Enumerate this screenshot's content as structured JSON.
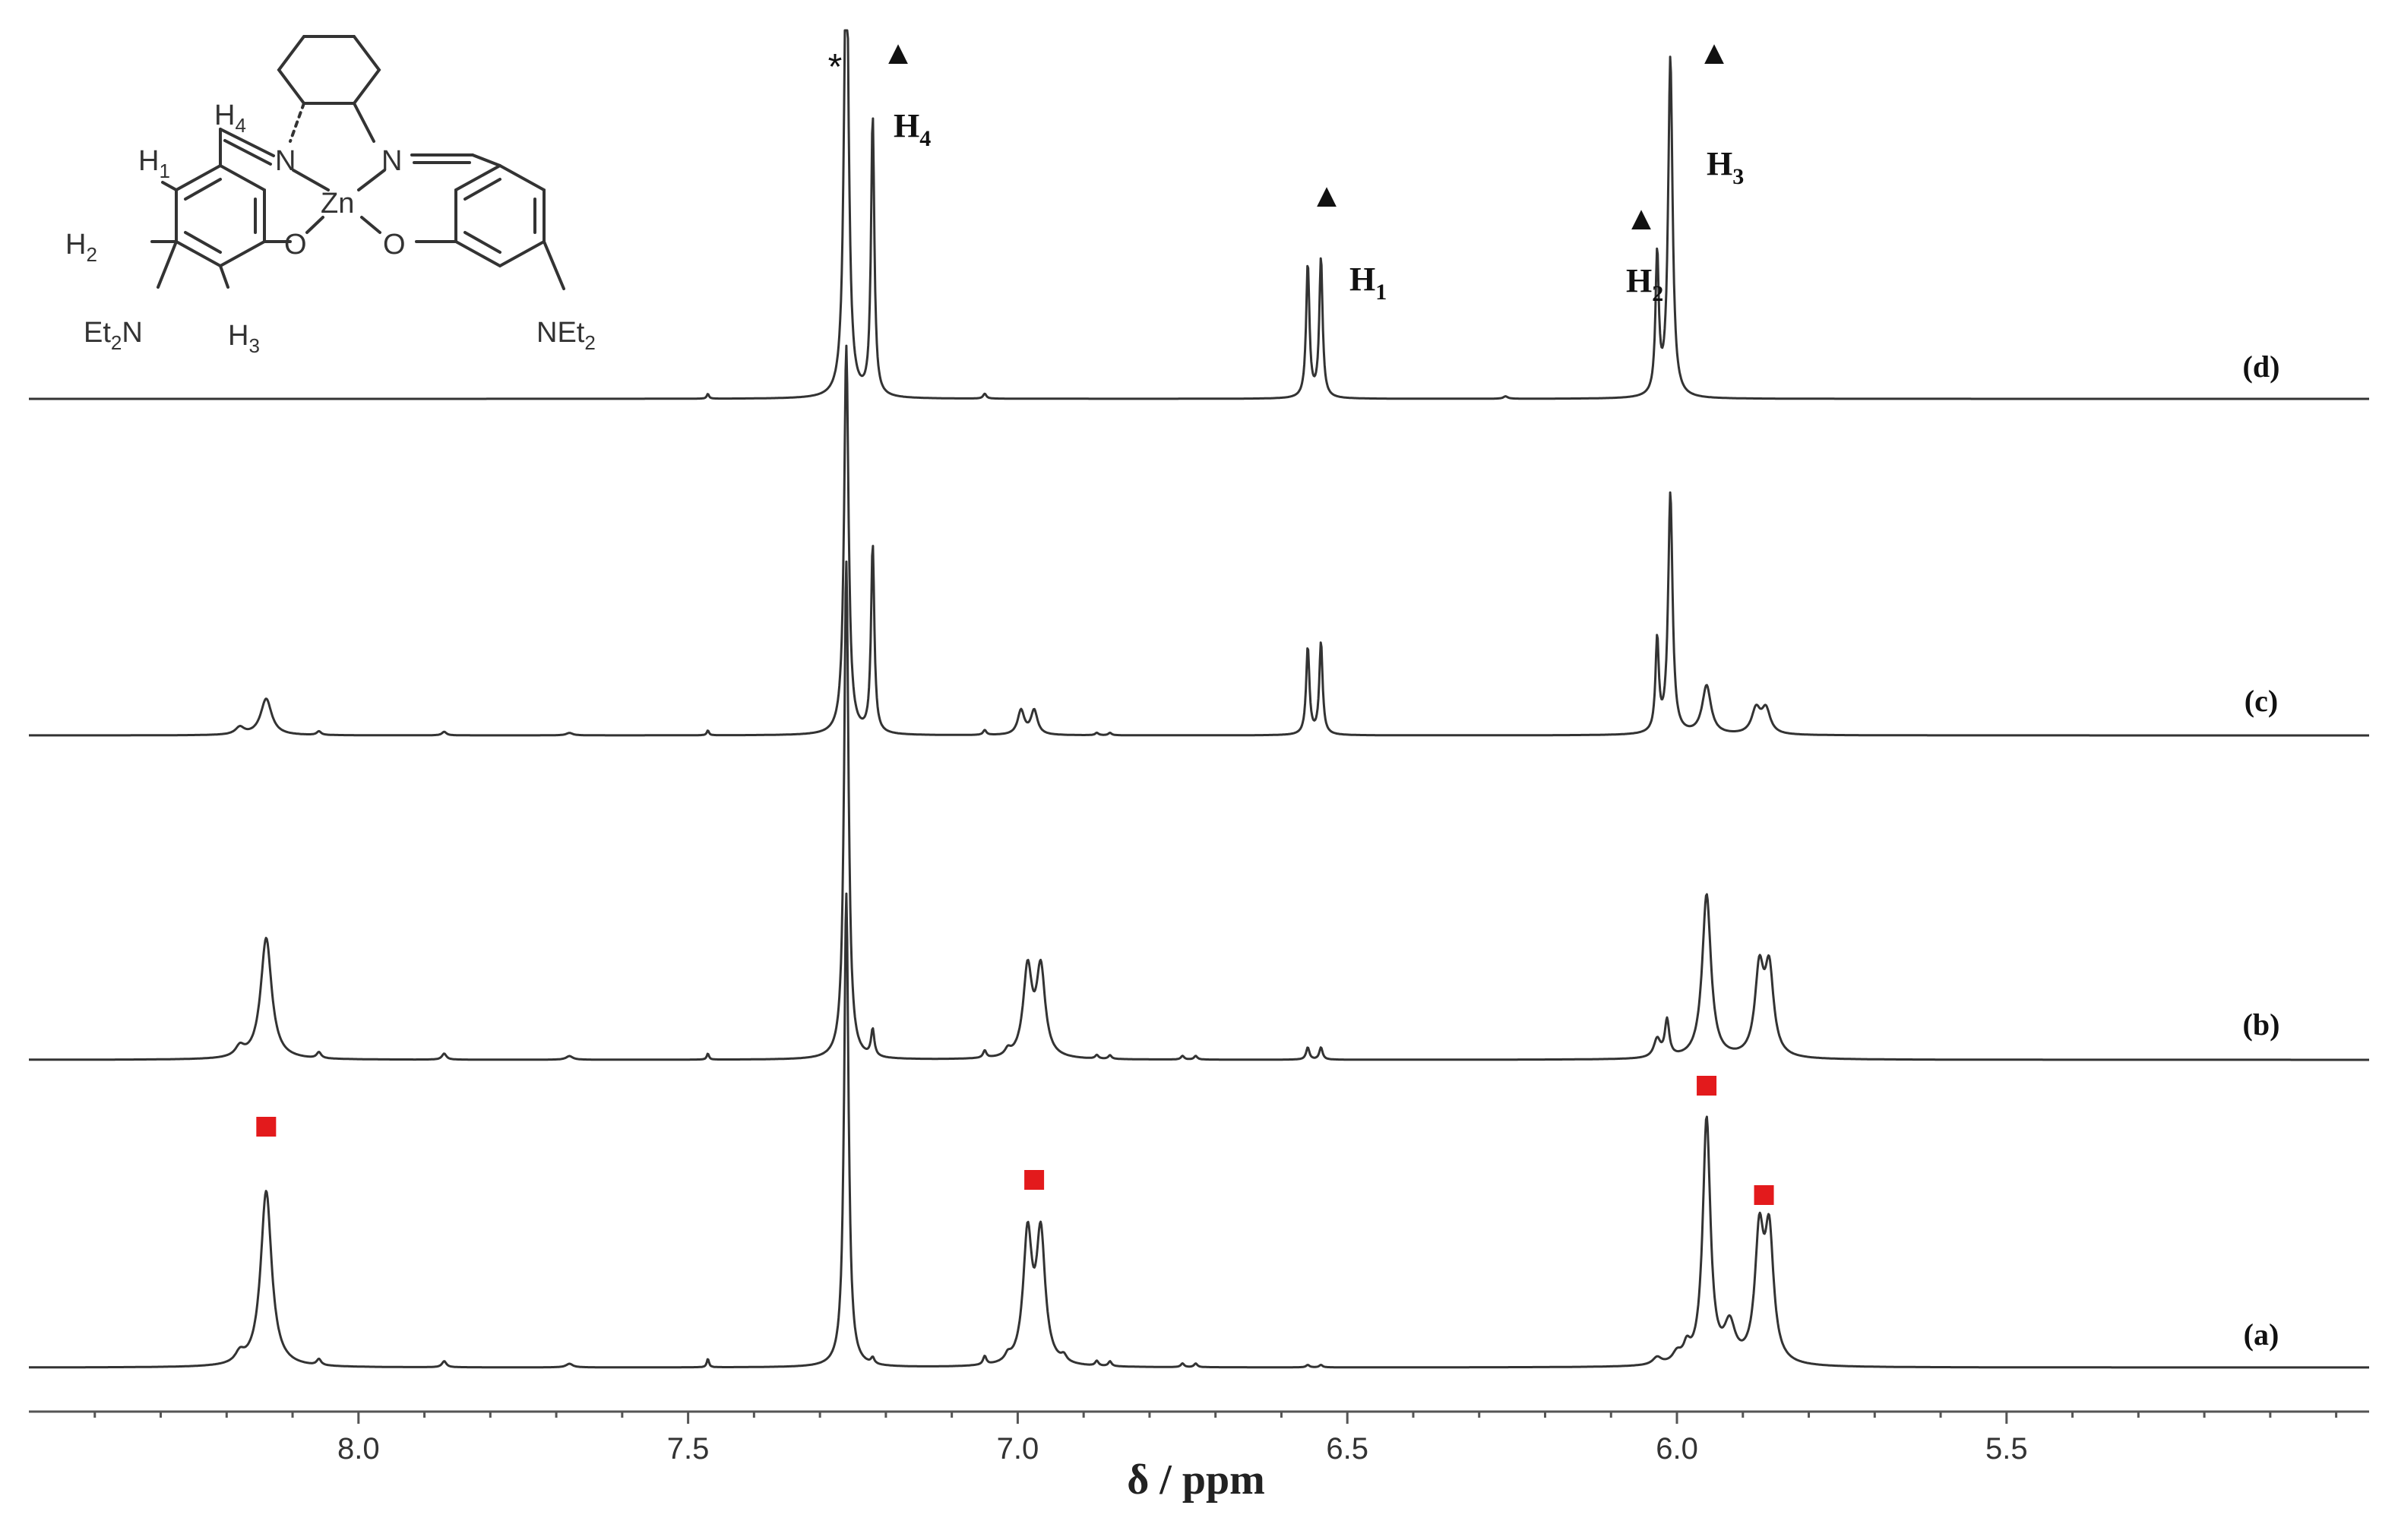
{
  "chart_data": {
    "type": "line",
    "title": "",
    "xlabel": "δ / ppm",
    "ylabel": "",
    "xlim": [
      8.5,
      4.95
    ],
    "x_reversed": true,
    "ticks": [
      8.0,
      7.5,
      7.0,
      6.5,
      6.0,
      5.5
    ],
    "tick_labels": [
      "8.0",
      "7.5",
      "7.0",
      "6.5",
      "6.0",
      "5.5"
    ],
    "grid": false,
    "series": [
      {
        "name": "(a)",
        "color": "#333333",
        "peaks": [
          {
            "ppm": 8.18,
            "h": 0.08,
            "w": 0.008
          },
          {
            "ppm": 8.14,
            "h": 1.45,
            "w": 0.01
          },
          {
            "ppm": 8.06,
            "h": 0.05,
            "w": 0.004
          },
          {
            "ppm": 7.87,
            "h": 0.05,
            "w": 0.004
          },
          {
            "ppm": 7.68,
            "h": 0.03,
            "w": 0.006
          },
          {
            "ppm": 7.47,
            "h": 0.07,
            "w": 0.002
          },
          {
            "ppm": 7.26,
            "h": 3.9,
            "w": 0.004
          },
          {
            "ppm": 7.22,
            "h": 0.05,
            "w": 0.003
          },
          {
            "ppm": 7.05,
            "h": 0.07,
            "w": 0.003
          },
          {
            "ppm": 7.015,
            "h": 0.05,
            "w": 0.005
          },
          {
            "ppm": 6.985,
            "h": 1.05,
            "w": 0.008
          },
          {
            "ppm": 6.965,
            "h": 1.05,
            "w": 0.008
          },
          {
            "ppm": 6.93,
            "h": 0.05,
            "w": 0.005
          },
          {
            "ppm": 6.88,
            "h": 0.04,
            "w": 0.003
          },
          {
            "ppm": 6.86,
            "h": 0.04,
            "w": 0.003
          },
          {
            "ppm": 6.75,
            "h": 0.03,
            "w": 0.003
          },
          {
            "ppm": 6.73,
            "h": 0.03,
            "w": 0.003
          },
          {
            "ppm": 6.56,
            "h": 0.02,
            "w": 0.003
          },
          {
            "ppm": 6.54,
            "h": 0.02,
            "w": 0.003
          },
          {
            "ppm": 6.03,
            "h": 0.06,
            "w": 0.008
          },
          {
            "ppm": 6.0,
            "h": 0.08,
            "w": 0.008
          },
          {
            "ppm": 5.985,
            "h": 0.12,
            "w": 0.006
          },
          {
            "ppm": 5.955,
            "h": 2.02,
            "w": 0.007
          },
          {
            "ppm": 5.92,
            "h": 0.3,
            "w": 0.01
          },
          {
            "ppm": 5.875,
            "h": 1.01,
            "w": 0.008
          },
          {
            "ppm": 5.86,
            "h": 1.01,
            "w": 0.008
          }
        ]
      },
      {
        "name": "(b)",
        "color": "#333333",
        "peaks": [
          {
            "ppm": 8.18,
            "h": 0.08,
            "w": 0.008
          },
          {
            "ppm": 8.14,
            "h": 1.0,
            "w": 0.01
          },
          {
            "ppm": 8.06,
            "h": 0.05,
            "w": 0.004
          },
          {
            "ppm": 7.87,
            "h": 0.05,
            "w": 0.004
          },
          {
            "ppm": 7.68,
            "h": 0.03,
            "w": 0.006
          },
          {
            "ppm": 7.47,
            "h": 0.05,
            "w": 0.002
          },
          {
            "ppm": 7.26,
            "h": 4.1,
            "w": 0.004
          },
          {
            "ppm": 7.22,
            "h": 0.22,
            "w": 0.003
          },
          {
            "ppm": 7.05,
            "h": 0.06,
            "w": 0.003
          },
          {
            "ppm": 7.015,
            "h": 0.05,
            "w": 0.005
          },
          {
            "ppm": 6.985,
            "h": 0.72,
            "w": 0.008
          },
          {
            "ppm": 6.965,
            "h": 0.72,
            "w": 0.008
          },
          {
            "ppm": 6.88,
            "h": 0.03,
            "w": 0.003
          },
          {
            "ppm": 6.86,
            "h": 0.03,
            "w": 0.003
          },
          {
            "ppm": 6.75,
            "h": 0.03,
            "w": 0.003
          },
          {
            "ppm": 6.73,
            "h": 0.03,
            "w": 0.003
          },
          {
            "ppm": 6.56,
            "h": 0.1,
            "w": 0.003
          },
          {
            "ppm": 6.54,
            "h": 0.1,
            "w": 0.003
          },
          {
            "ppm": 6.03,
            "h": 0.15,
            "w": 0.006
          },
          {
            "ppm": 6.015,
            "h": 0.3,
            "w": 0.004
          },
          {
            "ppm": 5.955,
            "h": 1.35,
            "w": 0.008
          },
          {
            "ppm": 5.875,
            "h": 0.69,
            "w": 0.008
          },
          {
            "ppm": 5.86,
            "h": 0.69,
            "w": 0.008
          }
        ]
      },
      {
        "name": "(c)",
        "color": "#333333",
        "peaks": [
          {
            "ppm": 8.18,
            "h": 0.06,
            "w": 0.008
          },
          {
            "ppm": 8.14,
            "h": 0.3,
            "w": 0.01
          },
          {
            "ppm": 8.06,
            "h": 0.03,
            "w": 0.004
          },
          {
            "ppm": 7.87,
            "h": 0.03,
            "w": 0.004
          },
          {
            "ppm": 7.68,
            "h": 0.02,
            "w": 0.006
          },
          {
            "ppm": 7.47,
            "h": 0.04,
            "w": 0.002
          },
          {
            "ppm": 7.26,
            "h": 3.2,
            "w": 0.004
          },
          {
            "ppm": 7.22,
            "h": 1.55,
            "w": 0.003
          },
          {
            "ppm": 7.05,
            "h": 0.04,
            "w": 0.003
          },
          {
            "ppm": 6.995,
            "h": 0.2,
            "w": 0.006
          },
          {
            "ppm": 6.975,
            "h": 0.2,
            "w": 0.006
          },
          {
            "ppm": 6.88,
            "h": 0.02,
            "w": 0.003
          },
          {
            "ppm": 6.86,
            "h": 0.02,
            "w": 0.003
          },
          {
            "ppm": 6.56,
            "h": 0.72,
            "w": 0.003
          },
          {
            "ppm": 6.54,
            "h": 0.76,
            "w": 0.003
          },
          {
            "ppm": 6.03,
            "h": 0.76,
            "w": 0.003
          },
          {
            "ppm": 6.01,
            "h": 1.98,
            "w": 0.004
          },
          {
            "ppm": 5.955,
            "h": 0.4,
            "w": 0.008
          },
          {
            "ppm": 5.88,
            "h": 0.2,
            "w": 0.008
          },
          {
            "ppm": 5.865,
            "h": 0.2,
            "w": 0.008
          }
        ]
      },
      {
        "name": "(d)",
        "color": "#333333",
        "peaks": [
          {
            "ppm": 7.47,
            "h": 0.04,
            "w": 0.002
          },
          {
            "ppm": 7.26,
            "h": 4.1,
            "w": 0.004
          },
          {
            "ppm": 7.22,
            "h": 2.3,
            "w": 0.003
          },
          {
            "ppm": 7.05,
            "h": 0.04,
            "w": 0.003
          },
          {
            "ppm": 6.56,
            "h": 1.1,
            "w": 0.003
          },
          {
            "ppm": 6.54,
            "h": 1.15,
            "w": 0.003
          },
          {
            "ppm": 6.26,
            "h": 0.02,
            "w": 0.004
          },
          {
            "ppm": 6.03,
            "h": 1.15,
            "w": 0.003
          },
          {
            "ppm": 6.01,
            "h": 2.8,
            "w": 0.004
          }
        ]
      }
    ],
    "annotations": [
      {
        "text": "*",
        "ppm": 7.26,
        "trace": "(d)"
      },
      {
        "marker": "▲",
        "label": "H",
        "sub": "4",
        "ppm": 7.22,
        "trace": "(d)"
      },
      {
        "marker": "▲",
        "label": "H",
        "sub": "1",
        "ppm": 6.55,
        "trace": "(d)"
      },
      {
        "marker": "▲",
        "label": "H",
        "sub": "2",
        "ppm": 6.03,
        "trace": "(d)"
      },
      {
        "marker": "▲",
        "label": "H",
        "sub": "3",
        "ppm": 6.01,
        "trace": "(d)"
      },
      {
        "marker": "■",
        "color": "#e31a1c",
        "ppm": 8.14,
        "trace": "(a)"
      },
      {
        "marker": "■",
        "color": "#e31a1c",
        "ppm": 6.975,
        "trace": "(a)"
      },
      {
        "marker": "■",
        "color": "#e31a1c",
        "ppm": 5.955,
        "trace": "(a)"
      },
      {
        "marker": "■",
        "color": "#e31a1c",
        "ppm": 5.868,
        "trace": "(a)"
      }
    ]
  },
  "structure": {
    "metal": "Zn",
    "labels": {
      "h1": "H",
      "h1_sub": "1",
      "h2": "H",
      "h2_sub": "2",
      "h3": "H",
      "h3_sub": "3",
      "h4": "H",
      "h4_sub": "4",
      "n_left": "N",
      "n_right": "N",
      "o_left": "O",
      "o_right": "O",
      "amine_left": "Et",
      "amine_left_sub": "2",
      "amine_left_n": "N",
      "amine_right_n": "NEt",
      "amine_right_sub": "2"
    }
  },
  "colors": {
    "trace": "#333333",
    "marker_red": "#e31a1c",
    "marker_black": "#000000"
  }
}
